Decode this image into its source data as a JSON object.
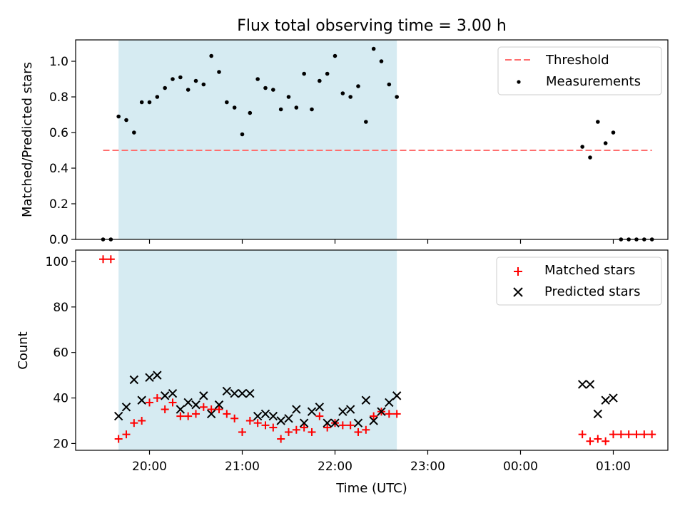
{
  "title": "Flux total observing time = 3.00 h",
  "xlabel": "Time (UTC)",
  "x_ticks": [
    "20:00",
    "21:00",
    "22:00",
    "23:00",
    "00:00",
    "01:00"
  ],
  "colors": {
    "shade": "#add8e6",
    "threshold": "#ff6f6f",
    "matched": "#ff0000",
    "predicted": "#000000",
    "measurements": "#000000"
  },
  "chart_data": [
    {
      "type": "scatter",
      "ylabel": "Matched/Predicted stars",
      "ylim": [
        0,
        1.12
      ],
      "yticks": [
        0.0,
        0.2,
        0.4,
        0.6,
        0.8,
        1.0
      ],
      "ytick_labels": [
        "0.0",
        "0.2",
        "0.4",
        "0.6",
        "0.8",
        "1.0"
      ],
      "shaded_range": [
        "19:40",
        "22:40"
      ],
      "threshold": {
        "name": "Threshold",
        "x_range": [
          "19:30",
          "01:25"
        ],
        "value": 0.5
      },
      "legend": [
        "Threshold",
        "Measurements"
      ],
      "legend_position": "top-right",
      "series": [
        {
          "name": "Measurements",
          "marker": "dot",
          "points": [
            [
              "19:30",
              0.0
            ],
            [
              "19:35",
              0.0
            ],
            [
              "19:40",
              0.69
            ],
            [
              "19:45",
              0.67
            ],
            [
              "19:50",
              0.6
            ],
            [
              "19:55",
              0.77
            ],
            [
              "20:00",
              0.77
            ],
            [
              "20:05",
              0.8
            ],
            [
              "20:10",
              0.85
            ],
            [
              "20:15",
              0.9
            ],
            [
              "20:20",
              0.91
            ],
            [
              "20:25",
              0.84
            ],
            [
              "20:30",
              0.89
            ],
            [
              "20:35",
              0.87
            ],
            [
              "20:40",
              1.03
            ],
            [
              "20:45",
              0.94
            ],
            [
              "20:50",
              0.77
            ],
            [
              "20:55",
              0.74
            ],
            [
              "21:00",
              0.59
            ],
            [
              "21:05",
              0.71
            ],
            [
              "21:10",
              0.9
            ],
            [
              "21:15",
              0.85
            ],
            [
              "21:20",
              0.84
            ],
            [
              "21:25",
              0.73
            ],
            [
              "21:30",
              0.8
            ],
            [
              "21:35",
              0.74
            ],
            [
              "21:40",
              0.93
            ],
            [
              "21:45",
              0.73
            ],
            [
              "21:50",
              0.89
            ],
            [
              "21:55",
              0.93
            ],
            [
              "22:00",
              1.03
            ],
            [
              "22:05",
              0.82
            ],
            [
              "22:10",
              0.8
            ],
            [
              "22:15",
              0.86
            ],
            [
              "22:20",
              0.66
            ],
            [
              "22:25",
              1.07
            ],
            [
              "22:30",
              1.0
            ],
            [
              "22:35",
              0.87
            ],
            [
              "22:40",
              0.8
            ],
            [
              "00:40",
              0.52
            ],
            [
              "00:45",
              0.46
            ],
            [
              "00:50",
              0.66
            ],
            [
              "00:55",
              0.54
            ],
            [
              "01:00",
              0.6
            ],
            [
              "01:05",
              0.0
            ],
            [
              "01:10",
              0.0
            ],
            [
              "01:15",
              0.0
            ],
            [
              "01:20",
              0.0
            ],
            [
              "01:25",
              0.0
            ]
          ]
        }
      ]
    },
    {
      "type": "scatter",
      "ylabel": "Count",
      "ylim": [
        17,
        105
      ],
      "yticks": [
        20,
        40,
        60,
        80,
        100
      ],
      "ytick_labels": [
        "20",
        "40",
        "60",
        "80",
        "100"
      ],
      "shaded_range": [
        "19:40",
        "22:40"
      ],
      "legend": [
        "Matched stars",
        "Predicted stars"
      ],
      "legend_position": "top-right",
      "series": [
        {
          "name": "Matched stars",
          "marker": "plus",
          "points": [
            [
              "19:30",
              101
            ],
            [
              "19:35",
              101
            ],
            [
              "19:40",
              22
            ],
            [
              "19:45",
              24
            ],
            [
              "19:50",
              29
            ],
            [
              "19:55",
              30
            ],
            [
              "20:00",
              38
            ],
            [
              "20:05",
              40
            ],
            [
              "20:10",
              35
            ],
            [
              "20:15",
              38
            ],
            [
              "20:20",
              32
            ],
            [
              "20:25",
              32
            ],
            [
              "20:30",
              33
            ],
            [
              "20:35",
              36
            ],
            [
              "20:40",
              35
            ],
            [
              "20:45",
              35
            ],
            [
              "20:50",
              33
            ],
            [
              "20:55",
              31
            ],
            [
              "21:00",
              25
            ],
            [
              "21:05",
              30
            ],
            [
              "21:10",
              29
            ],
            [
              "21:15",
              28
            ],
            [
              "21:20",
              27
            ],
            [
              "21:25",
              22
            ],
            [
              "21:30",
              25
            ],
            [
              "21:35",
              26
            ],
            [
              "21:40",
              27
            ],
            [
              "21:45",
              25
            ],
            [
              "21:50",
              32
            ],
            [
              "21:55",
              27
            ],
            [
              "22:00",
              29
            ],
            [
              "22:05",
              28
            ],
            [
              "22:10",
              28
            ],
            [
              "22:15",
              25
            ],
            [
              "22:20",
              26
            ],
            [
              "22:25",
              32
            ],
            [
              "22:30",
              34
            ],
            [
              "22:35",
              33
            ],
            [
              "22:40",
              33
            ],
            [
              "00:40",
              24
            ],
            [
              "00:45",
              21
            ],
            [
              "00:50",
              22
            ],
            [
              "00:55",
              21
            ],
            [
              "01:00",
              24
            ],
            [
              "01:05",
              24
            ],
            [
              "01:10",
              24
            ],
            [
              "01:15",
              24
            ],
            [
              "01:20",
              24
            ],
            [
              "01:25",
              24
            ]
          ]
        },
        {
          "name": "Predicted stars",
          "marker": "x",
          "points": [
            [
              "19:40",
              32
            ],
            [
              "19:45",
              36
            ],
            [
              "19:50",
              48
            ],
            [
              "19:55",
              39
            ],
            [
              "20:00",
              49
            ],
            [
              "20:05",
              50
            ],
            [
              "20:10",
              41
            ],
            [
              "20:15",
              42
            ],
            [
              "20:20",
              35
            ],
            [
              "20:25",
              38
            ],
            [
              "20:30",
              37
            ],
            [
              "20:35",
              41
            ],
            [
              "20:40",
              33
            ],
            [
              "20:45",
              37
            ],
            [
              "20:50",
              43
            ],
            [
              "20:55",
              42
            ],
            [
              "21:00",
              42
            ],
            [
              "21:05",
              42
            ],
            [
              "21:10",
              32
            ],
            [
              "21:15",
              33
            ],
            [
              "21:20",
              32
            ],
            [
              "21:25",
              30
            ],
            [
              "21:30",
              31
            ],
            [
              "21:35",
              35
            ],
            [
              "21:40",
              29
            ],
            [
              "21:45",
              34
            ],
            [
              "21:50",
              36
            ],
            [
              "21:55",
              29
            ],
            [
              "22:00",
              29
            ],
            [
              "22:05",
              34
            ],
            [
              "22:10",
              35
            ],
            [
              "22:15",
              29
            ],
            [
              "22:20",
              39
            ],
            [
              "22:25",
              30
            ],
            [
              "22:30",
              34
            ],
            [
              "22:35",
              38
            ],
            [
              "22:40",
              41
            ],
            [
              "00:40",
              46
            ],
            [
              "00:45",
              46
            ],
            [
              "00:50",
              33
            ],
            [
              "00:55",
              39
            ],
            [
              "01:00",
              40
            ]
          ]
        }
      ]
    }
  ]
}
